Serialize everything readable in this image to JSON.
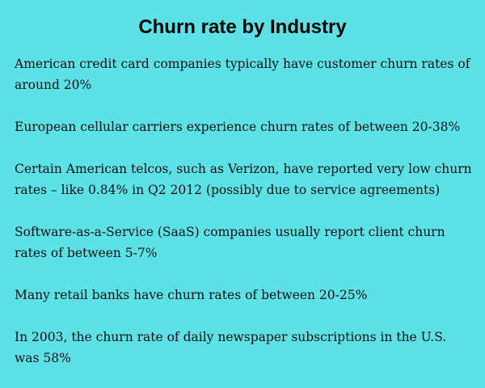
{
  "title": "Churn rate by Industry",
  "colors": {
    "background": "#5ce1e6",
    "text": "#000000"
  },
  "facts": [
    "American credit card companies typically have customer churn rates of around 20%",
    "European cellular carriers experience churn rates of between 20-38%",
    "Certain American telcos, such as Verizon, have reported very low churn rates – like 0.84% in Q2 2012 (possibly due to service agreements)",
    "Software-as-a-Service (SaaS) companies usually report client churn rates of between 5-7%",
    "Many retail banks have churn rates of between 20-25%",
    "In 2003, the churn rate of daily newspaper subscriptions in the U.S. was 58%"
  ]
}
